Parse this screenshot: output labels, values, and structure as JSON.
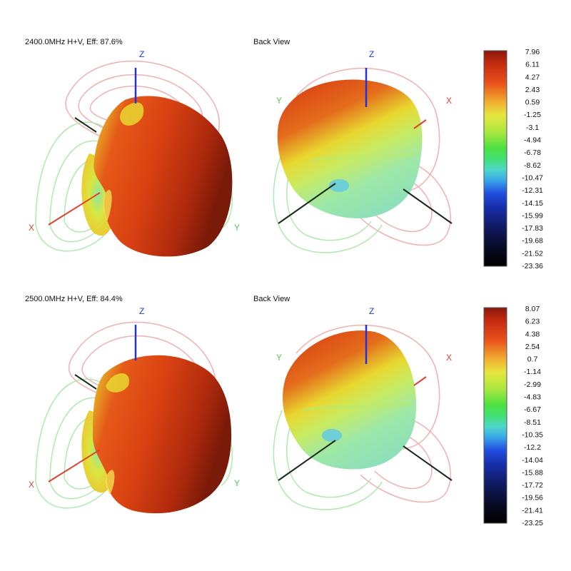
{
  "chart_data": [
    {
      "type": "3d-radiation-pattern",
      "panels": [
        {
          "title": "2400.0MHz H+V, Eff: 87.6%",
          "view": "front",
          "axes": [
            "Z",
            "X",
            "Y"
          ]
        },
        {
          "title": "Back View",
          "view": "back",
          "axes": [
            "Z",
            "Y",
            "X"
          ]
        }
      ],
      "colorbar": {
        "ticks": [
          "7.96",
          "6.11",
          "4.27",
          "2.43",
          "0.59",
          "-1.25",
          "-3.1",
          "-4.94",
          "-6.78",
          "-8.62",
          "-10.47",
          "-12.31",
          "-14.15",
          "-15.99",
          "-17.83",
          "-19.68",
          "-21.52",
          "-23.36"
        ]
      }
    },
    {
      "type": "3d-radiation-pattern",
      "panels": [
        {
          "title": "2500.0MHz H+V, Eff: 84.4%",
          "view": "front",
          "axes": [
            "Z",
            "X",
            "Y"
          ]
        },
        {
          "title": "Back View",
          "view": "back",
          "axes": [
            "Z",
            "Y",
            "X"
          ]
        }
      ],
      "colorbar": {
        "ticks": [
          "8.07",
          "6.23",
          "4.38",
          "2.54",
          "0.7",
          "-1.14",
          "-2.99",
          "-4.83",
          "-6.67",
          "-8.51",
          "-10.35",
          "-12.2",
          "-14.04",
          "-15.88",
          "-17.72",
          "-19.56",
          "-21.41",
          "-23.25"
        ]
      }
    }
  ],
  "colors": {
    "z_axis": "#2233dd",
    "x_axis": "#e04030",
    "y_axis": "#55cc55",
    "dark_axis": "#1a2a1a",
    "red_contour": "#f0b0b0",
    "green_contour": "#b0e8b0"
  }
}
